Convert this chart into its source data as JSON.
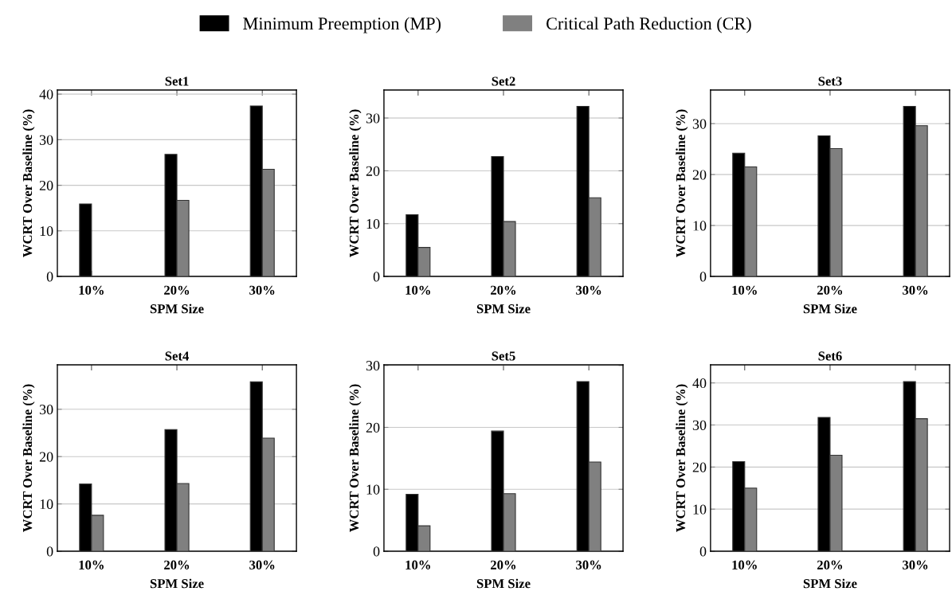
{
  "chart_data": [
    {
      "type": "bar",
      "title": "Set1",
      "xlabel": "SPM Size",
      "ylabel": "WCRT Over Baseline (%)",
      "categories": [
        "10%",
        "20%",
        "30%"
      ],
      "ylim": [
        0,
        40.9
      ],
      "yticks": [
        0,
        10,
        20,
        30,
        40
      ],
      "grid": "y",
      "legend": "top",
      "series": [
        {
          "name": "Minimum Preemption (MP)",
          "color": "#000000",
          "values": [
            15.9,
            26.8,
            37.4
          ]
        },
        {
          "name": "Critical Path Reduction (CR)",
          "color": "#808080",
          "values": [
            null,
            16.7,
            23.5
          ]
        }
      ]
    },
    {
      "type": "bar",
      "title": "Set2",
      "xlabel": "SPM Size",
      "ylabel": "WCRT Over Baseline (%)",
      "categories": [
        "10%",
        "20%",
        "30%"
      ],
      "ylim": [
        0,
        35.3
      ],
      "yticks": [
        0,
        10,
        20,
        30
      ],
      "grid": "y",
      "series": [
        {
          "color": "#000000",
          "values": [
            11.7,
            22.7,
            32.2
          ]
        },
        {
          "color": "#808080",
          "values": [
            5.5,
            10.4,
            14.9
          ]
        }
      ]
    },
    {
      "type": "bar",
      "title": "Set3",
      "xlabel": "SPM Size",
      "ylabel": "WCRT Over Baseline (%)",
      "categories": [
        "10%",
        "20%",
        "30%"
      ],
      "ylim": [
        0,
        36.6
      ],
      "yticks": [
        0,
        10,
        20,
        30
      ],
      "grid": "y",
      "series": [
        {
          "color": "#000000",
          "values": [
            24.2,
            27.6,
            33.4
          ]
        },
        {
          "color": "#808080",
          "values": [
            21.5,
            25.1,
            29.6
          ]
        }
      ]
    },
    {
      "type": "bar",
      "title": "Set4",
      "xlabel": "SPM Size",
      "ylabel": "WCRT Over Baseline (%)",
      "categories": [
        "10%",
        "20%",
        "30%"
      ],
      "ylim": [
        0,
        39.4
      ],
      "yticks": [
        0,
        10,
        20,
        30
      ],
      "grid": "y",
      "series": [
        {
          "color": "#000000",
          "values": [
            14.2,
            25.7,
            35.8
          ]
        },
        {
          "color": "#808080",
          "values": [
            7.6,
            14.3,
            23.9
          ]
        }
      ]
    },
    {
      "type": "bar",
      "title": "Set5",
      "xlabel": "SPM Size",
      "ylabel": "WCRT Over Baseline (%)",
      "categories": [
        "10%",
        "20%",
        "30%"
      ],
      "ylim": [
        0,
        30.1
      ],
      "yticks": [
        0,
        10,
        20,
        30
      ],
      "grid": "y",
      "series": [
        {
          "color": "#000000",
          "values": [
            9.2,
            19.4,
            27.4
          ]
        },
        {
          "color": "#808080",
          "values": [
            4.1,
            9.3,
            14.4
          ]
        }
      ]
    },
    {
      "type": "bar",
      "title": "Set6",
      "xlabel": "SPM Size",
      "ylabel": "WCRT Over Baseline (%)",
      "categories": [
        "10%",
        "20%",
        "30%"
      ],
      "ylim": [
        0,
        44.3
      ],
      "yticks": [
        0,
        10,
        20,
        30,
        40
      ],
      "grid": "y",
      "series": [
        {
          "color": "#000000",
          "values": [
            21.3,
            31.8,
            40.3
          ]
        },
        {
          "color": "#808080",
          "values": [
            15.0,
            22.8,
            31.5
          ]
        }
      ]
    }
  ]
}
